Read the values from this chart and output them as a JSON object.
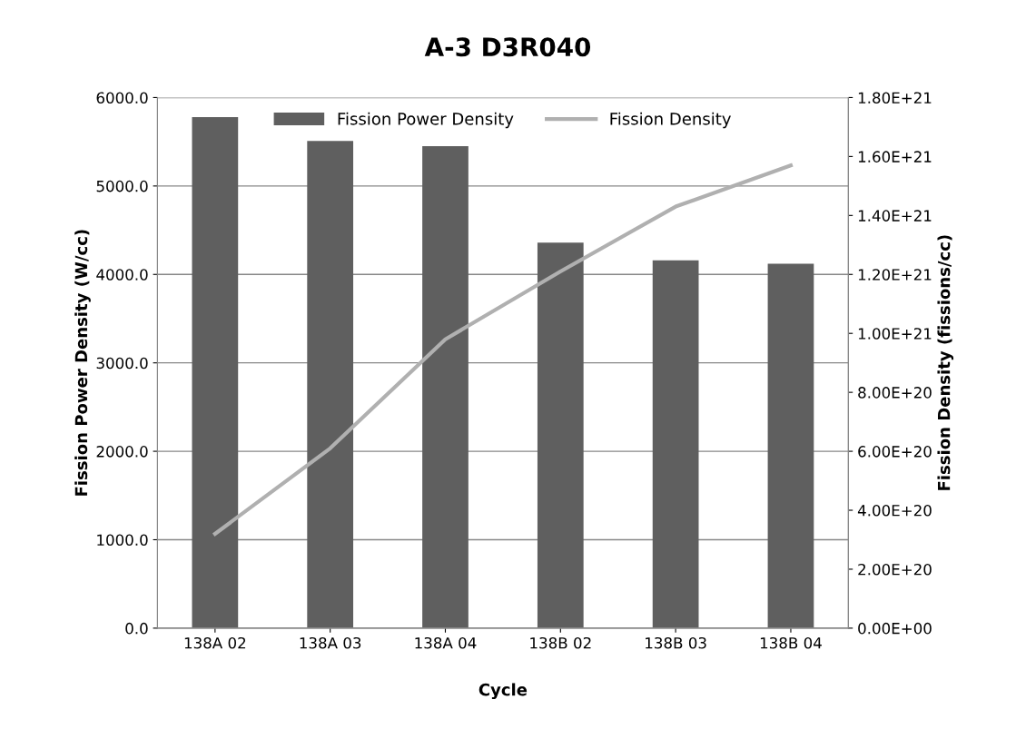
{
  "chart_data": {
    "type": "bar",
    "title": "A-3 D3R040",
    "xlabel": "Cycle",
    "ylabel": "Fission Power Density (W/cc)",
    "y2label": "Fission Density (fissions/cc)",
    "categories": [
      "138A 02",
      "138A 03",
      "138A 04",
      "138B 02",
      "138B 03",
      "138B 04"
    ],
    "series": [
      {
        "name": "Fission Power Density",
        "color": "#5f5f5f",
        "values": [
          5780,
          5510,
          5450,
          4360,
          4160,
          4120
        ]
      },
      {
        "name": "Fission Density",
        "color": "#b0b0b0",
        "type": "line",
        "axis": "y2",
        "values": [
          3.2e+20,
          6.1e+20,
          9.8e+20,
          1.21e+21,
          1.43e+21,
          1.57e+21
        ]
      }
    ],
    "ylim": [
      0,
      6000
    ],
    "yticks": [
      {
        "value": 0,
        "label": "0.0"
      },
      {
        "value": 1000,
        "label": "1000.0"
      },
      {
        "value": 2000,
        "label": "2000.0"
      },
      {
        "value": 3000,
        "label": "3000.0"
      },
      {
        "value": 4000,
        "label": "4000.0"
      },
      {
        "value": 5000,
        "label": "5000.0"
      },
      {
        "value": 6000,
        "label": "6000.0"
      }
    ],
    "y2lim": [
      0,
      1.8e+21
    ],
    "y2ticks": [
      {
        "value": 0,
        "label": "0.00E+00"
      },
      {
        "value": 2e+20,
        "label": "2.00E+20"
      },
      {
        "value": 4e+20,
        "label": "4.00E+20"
      },
      {
        "value": 6e+20,
        "label": "6.00E+20"
      },
      {
        "value": 8e+20,
        "label": "8.00E+20"
      },
      {
        "value": 1e+21,
        "label": "1.00E+21"
      },
      {
        "value": 1.2e+21,
        "label": "1.20E+21"
      },
      {
        "value": 1.4e+21,
        "label": "1.40E+21"
      },
      {
        "value": 1.6e+21,
        "label": "1.60E+21"
      },
      {
        "value": 1.8e+21,
        "label": "1.80E+21"
      }
    ],
    "grid": "y",
    "legend": "top",
    "marker": "none",
    "line_style": "solid"
  }
}
